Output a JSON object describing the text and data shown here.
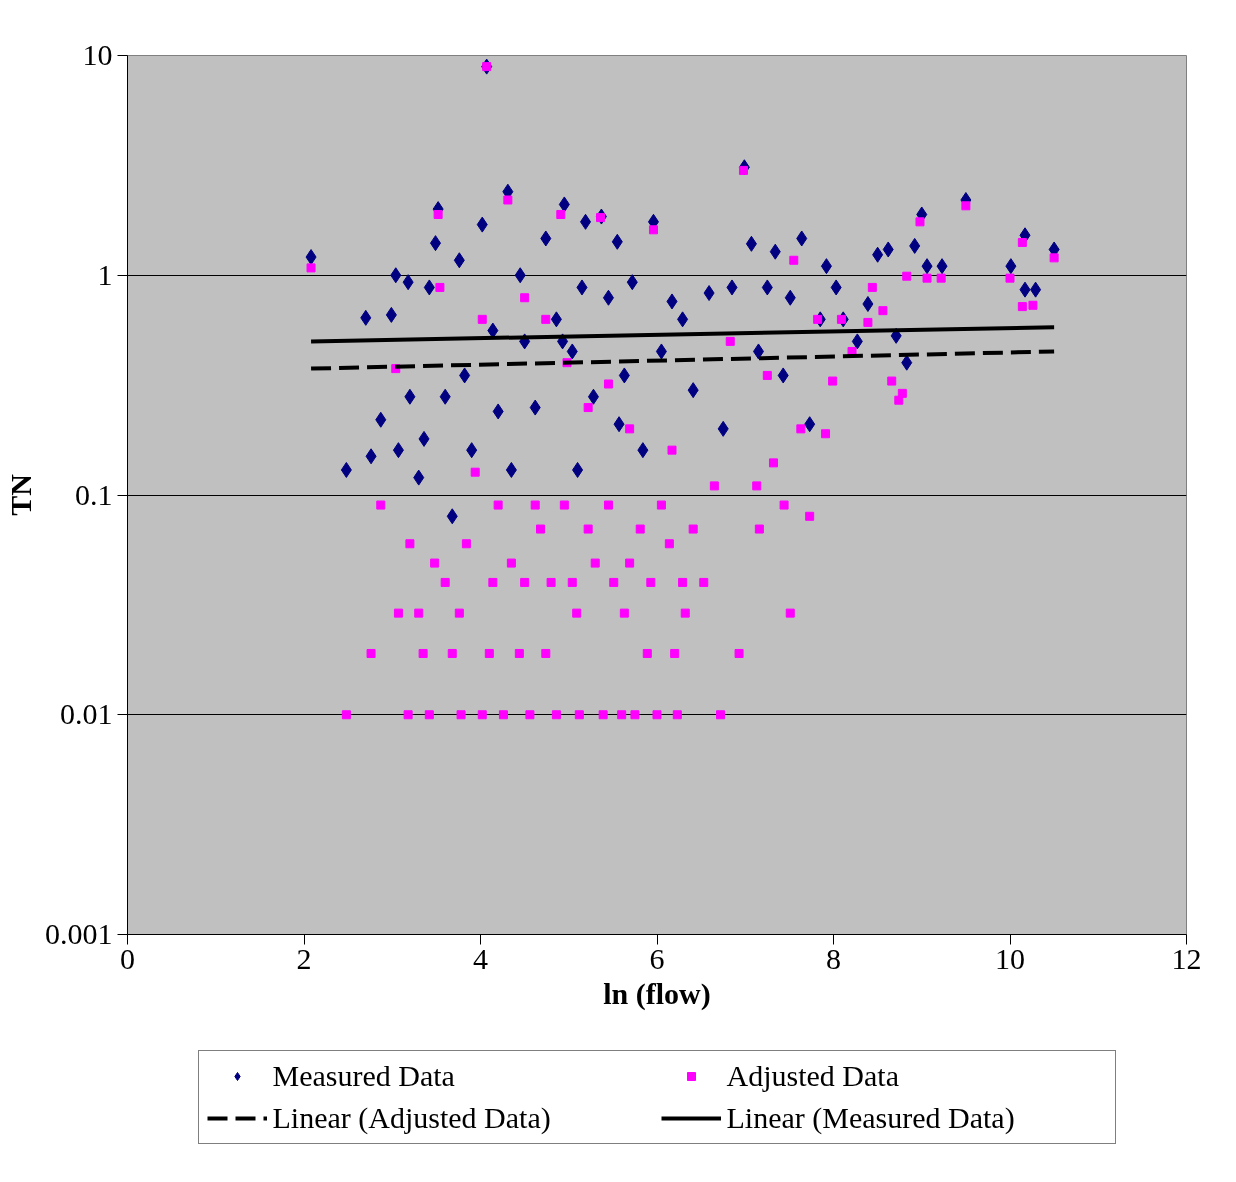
{
  "chart_data": {
    "type": "scatter",
    "xlabel": "ln (flow)",
    "ylabel": "TN",
    "xlim": [
      0,
      12
    ],
    "xticks": [
      0,
      2,
      4,
      6,
      8,
      10,
      12
    ],
    "ylim": [
      0.001,
      10
    ],
    "yticks": [
      0.001,
      0.01,
      0.1,
      1,
      10
    ],
    "log": "y",
    "grid": "y",
    "legend": "bottom",
    "series": [
      {
        "name": "Measured Data",
        "marker": "diamond",
        "color": "#000080",
        "x": [
          2.08,
          2.48,
          2.7,
          2.76,
          2.87,
          2.99,
          3.04,
          3.07,
          3.18,
          3.2,
          3.3,
          3.36,
          3.42,
          3.52,
          3.49,
          3.6,
          3.68,
          3.76,
          3.82,
          3.9,
          4.02,
          4.07,
          4.14,
          4.2,
          4.31,
          4.35,
          4.45,
          4.62,
          4.74,
          4.86,
          4.95,
          5.04,
          5.1,
          5.19,
          5.28,
          5.37,
          5.45,
          5.55,
          5.63,
          5.72,
          5.84,
          5.96,
          6.05,
          6.17,
          6.29,
          6.41,
          6.59,
          6.75,
          6.85,
          6.99,
          7.07,
          7.15,
          7.25,
          7.34,
          7.43,
          7.51,
          7.64,
          7.73,
          7.85,
          7.92,
          8.03,
          8.11,
          8.27,
          8.39,
          8.5,
          8.62,
          8.71,
          8.83,
          8.92,
          9.0,
          9.06,
          9.23,
          9.5,
          10.01,
          10.17,
          10.17,
          10.29,
          10.5,
          4.93,
          5.57,
          4.5,
          5.15
        ],
        "values": [
          1.21,
          0.13,
          0.64,
          0.15,
          0.22,
          0.66,
          1.0,
          0.16,
          0.93,
          0.28,
          0.12,
          0.18,
          0.88,
          2.0,
          1.4,
          0.28,
          0.08,
          1.17,
          0.35,
          0.16,
          1.7,
          8.9,
          0.56,
          0.24,
          2.4,
          0.13,
          1.0,
          0.25,
          1.47,
          0.63,
          2.1,
          0.45,
          0.13,
          1.75,
          0.28,
          1.85,
          0.79,
          1.42,
          0.35,
          0.93,
          0.16,
          1.75,
          0.45,
          0.76,
          0.63,
          0.3,
          0.83,
          0.2,
          0.88,
          3.1,
          1.39,
          0.45,
          0.88,
          1.28,
          0.35,
          0.79,
          1.47,
          0.21,
          0.63,
          1.1,
          0.88,
          0.63,
          0.5,
          0.74,
          1.24,
          1.31,
          0.53,
          0.4,
          1.36,
          1.89,
          1.1,
          1.1,
          2.2,
          1.1,
          1.52,
          0.86,
          0.86,
          1.31,
          0.5,
          0.21,
          0.5,
          0.88
        ]
      },
      {
        "name": "Adjusted Data",
        "marker": "square",
        "color": "#ff00ff",
        "x": [
          2.08,
          2.48,
          2.76,
          2.87,
          3.07,
          3.04,
          3.18,
          3.2,
          3.3,
          3.35,
          3.42,
          3.48,
          3.52,
          3.6,
          3.68,
          3.76,
          3.78,
          3.84,
          3.94,
          4.02,
          4.07,
          4.1,
          4.14,
          4.2,
          4.26,
          4.31,
          4.35,
          4.44,
          4.5,
          4.56,
          4.62,
          4.68,
          4.74,
          4.8,
          4.86,
          4.91,
          4.95,
          5.04,
          5.09,
          5.12,
          5.22,
          5.3,
          5.36,
          5.39,
          5.45,
          5.51,
          5.6,
          5.63,
          5.69,
          5.75,
          5.81,
          5.89,
          5.93,
          5.96,
          6.0,
          6.05,
          6.14,
          6.2,
          6.23,
          6.29,
          6.32,
          6.41,
          6.53,
          6.65,
          6.72,
          6.83,
          6.93,
          6.98,
          7.13,
          7.16,
          7.25,
          7.32,
          7.44,
          7.51,
          7.55,
          7.63,
          7.73,
          7.82,
          7.91,
          7.99,
          8.09,
          8.21,
          8.39,
          8.44,
          8.56,
          8.66,
          8.74,
          8.78,
          8.83,
          8.98,
          9.06,
          9.22,
          9.5,
          10.0,
          10.14,
          10.14,
          10.26,
          10.5,
          4.74,
          4.98,
          5.22,
          5.45,
          4.5,
          4.02,
          5.69,
          6.17,
          3.54
        ],
        "values": [
          1.08,
          0.01,
          0.019,
          0.09,
          0.029,
          0.376,
          0.01,
          0.06,
          0.029,
          0.019,
          0.01,
          0.049,
          1.89,
          0.04,
          0.019,
          0.029,
          0.01,
          0.06,
          0.127,
          0.01,
          8.9,
          0.019,
          0.04,
          0.09,
          0.01,
          2.2,
          0.049,
          0.019,
          0.04,
          0.01,
          0.09,
          0.07,
          0.019,
          0.04,
          0.01,
          1.89,
          0.09,
          0.04,
          0.029,
          0.01,
          0.07,
          0.049,
          1.83,
          0.01,
          0.09,
          0.04,
          0.01,
          0.029,
          0.049,
          0.01,
          0.07,
          0.019,
          0.04,
          1.61,
          0.01,
          0.09,
          0.06,
          0.019,
          0.01,
          0.04,
          0.029,
          0.07,
          0.04,
          0.11,
          0.01,
          0.5,
          0.019,
          3.0,
          0.11,
          0.07,
          0.35,
          0.14,
          0.09,
          0.029,
          1.17,
          0.2,
          0.08,
          0.63,
          0.19,
          0.33,
          0.63,
          0.45,
          0.61,
          0.88,
          0.69,
          0.33,
          0.27,
          0.29,
          0.99,
          1.75,
          0.97,
          0.97,
          2.07,
          0.97,
          1.41,
          0.72,
          0.73,
          1.2,
          0.63,
          0.4,
          0.25,
          0.32,
          0.79,
          0.63,
          0.2,
          0.16,
          0.88
        ]
      },
      {
        "name": "Linear (Adjusted Data)",
        "type": "line",
        "line_style": "dashed",
        "color": "#000000",
        "x": [
          2.08,
          10.5
        ],
        "values": [
          0.376,
          0.45
        ]
      },
      {
        "name": "Linear (Measured Data)",
        "type": "line",
        "line_style": "solid",
        "color": "#000000",
        "x": [
          2.08,
          10.5
        ],
        "values": [
          0.5,
          0.58
        ]
      }
    ]
  }
}
